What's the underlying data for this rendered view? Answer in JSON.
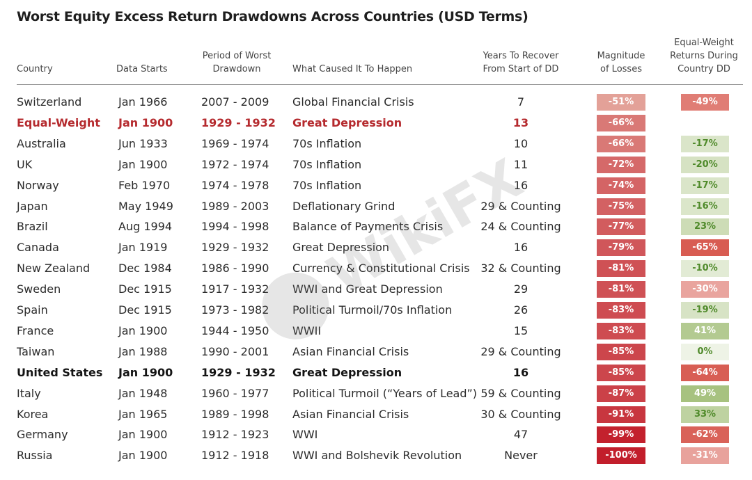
{
  "title": "Worst Equity Excess Return Drawdowns Across Countries (USD Terms)",
  "watermark": "WikiFX",
  "headers": {
    "country": "Country",
    "data_starts": "Data Starts",
    "period_line1": "Period of Worst",
    "period_line2": "Drawdown",
    "cause": "What Caused It To Happen",
    "recover_line1": "Years To Recover",
    "recover_line2": "From Start of DD",
    "magnitude_line1": "Magnitude",
    "magnitude_line2": "of Losses",
    "ew_line1": "Equal-Weight",
    "ew_line2": "Returns During",
    "ew_line3": "Country DD"
  },
  "colors": {
    "highlight_red": "#b52a2e",
    "magnitude_light": "#e4a49a",
    "magnitude_dark": "#c21e2b",
    "ew_negative_light": "#f7e2df",
    "ew_negative_dark": "#d85c52",
    "ew_positive_light": "#eef3e6",
    "ew_positive_dark": "#a6c17e"
  },
  "chart_data": {
    "type": "table",
    "title": "Worst Equity Excess Return Drawdowns Across Countries (USD Terms)",
    "columns": [
      "Country",
      "Data Starts",
      "Period of Worst Drawdown",
      "What Caused It To Happen",
      "Years To Recover From Start of DD",
      "Magnitude of Losses",
      "Equal-Weight Returns During Country DD"
    ],
    "rows": [
      {
        "country": "Switzerland",
        "data_starts": "Jan 1966",
        "period": "2007 - 2009",
        "cause": "Global Financial Crisis",
        "recover": "7",
        "magnitude": "-51%",
        "magnitude_value": -51,
        "ew": "-49%",
        "ew_value": -49,
        "style": "normal"
      },
      {
        "country": "Equal-Weight",
        "data_starts": "Jan 1900",
        "period": "1929 - 1932",
        "cause": "Great Depression",
        "recover": "13",
        "magnitude": "-66%",
        "magnitude_value": -66,
        "ew": "--",
        "ew_value": null,
        "style": "red"
      },
      {
        "country": "Australia",
        "data_starts": "Jun 1933",
        "period": "1969 - 1974",
        "cause": "70s Inflation",
        "recover": "10",
        "magnitude": "-66%",
        "magnitude_value": -66,
        "ew": "-17%",
        "ew_value": -17,
        "style": "normal"
      },
      {
        "country": "UK",
        "data_starts": "Jan 1900",
        "period": "1972 - 1974",
        "cause": "70s Inflation",
        "recover": "11",
        "magnitude": "-72%",
        "magnitude_value": -72,
        "ew": "-20%",
        "ew_value": -20,
        "style": "normal"
      },
      {
        "country": "Norway",
        "data_starts": "Feb 1970",
        "period": "1974 - 1978",
        "cause": "70s Inflation",
        "recover": "16",
        "magnitude": "-74%",
        "magnitude_value": -74,
        "ew": "-17%",
        "ew_value": -17,
        "style": "normal"
      },
      {
        "country": "Japan",
        "data_starts": "May 1949",
        "period": "1989 - 2003",
        "cause": "Deflationary Grind",
        "recover": "29 & Counting",
        "magnitude": "-75%",
        "magnitude_value": -75,
        "ew": "-16%",
        "ew_value": -16,
        "style": "normal"
      },
      {
        "country": "Brazil",
        "data_starts": "Aug 1994",
        "period": "1994 - 1998",
        "cause": "Balance of Payments Crisis",
        "recover": "24 & Counting",
        "magnitude": "-77%",
        "magnitude_value": -77,
        "ew": "23%",
        "ew_value": 23,
        "style": "normal"
      },
      {
        "country": "Canada",
        "data_starts": "Jan 1919",
        "period": "1929 - 1932",
        "cause": "Great Depression",
        "recover": "16",
        "magnitude": "-79%",
        "magnitude_value": -79,
        "ew": "-65%",
        "ew_value": -65,
        "style": "normal"
      },
      {
        "country": "New Zealand",
        "data_starts": "Dec 1984",
        "period": "1986 - 1990",
        "cause": "Currency & Constitutional Crisis",
        "recover": "32 & Counting",
        "magnitude": "-81%",
        "magnitude_value": -81,
        "ew": "-10%",
        "ew_value": -10,
        "style": "normal"
      },
      {
        "country": "Sweden",
        "data_starts": "Dec 1915",
        "period": "1917 - 1932",
        "cause": "WWI and Great Depression",
        "recover": "29",
        "magnitude": "-81%",
        "magnitude_value": -81,
        "ew": "-30%",
        "ew_value": -30,
        "style": "normal"
      },
      {
        "country": "Spain",
        "data_starts": "Dec 1915",
        "period": "1973 - 1982",
        "cause": "Political Turmoil/70s Inflation",
        "recover": "26",
        "magnitude": "-83%",
        "magnitude_value": -83,
        "ew": "-19%",
        "ew_value": -19,
        "style": "normal"
      },
      {
        "country": "France",
        "data_starts": "Jan 1900",
        "period": "1944 - 1950",
        "cause": "WWII",
        "recover": "15",
        "magnitude": "-83%",
        "magnitude_value": -83,
        "ew": "41%",
        "ew_value": 41,
        "style": "normal"
      },
      {
        "country": "Taiwan",
        "data_starts": "Jan 1988",
        "period": "1990 - 2001",
        "cause": "Asian Financial Crisis",
        "recover": "29 & Counting",
        "magnitude": "-85%",
        "magnitude_value": -85,
        "ew": "0%",
        "ew_value": 0,
        "style": "normal"
      },
      {
        "country": "United States",
        "data_starts": "Jan 1900",
        "period": "1929 - 1932",
        "cause": "Great Depression",
        "recover": "16",
        "magnitude": "-85%",
        "magnitude_value": -85,
        "ew": "-64%",
        "ew_value": -64,
        "style": "bold"
      },
      {
        "country": "Italy",
        "data_starts": "Jan 1948",
        "period": "1960 - 1977",
        "cause": "Political Turmoil (“Years of Lead”)",
        "recover": "59 & Counting",
        "magnitude": "-87%",
        "magnitude_value": -87,
        "ew": "49%",
        "ew_value": 49,
        "style": "normal"
      },
      {
        "country": "Korea",
        "data_starts": "Jan 1965",
        "period": "1989 - 1998",
        "cause": "Asian Financial Crisis",
        "recover": "30 & Counting",
        "magnitude": "-91%",
        "magnitude_value": -91,
        "ew": "33%",
        "ew_value": 33,
        "style": "normal"
      },
      {
        "country": "Germany",
        "data_starts": "Jan 1900",
        "period": "1912 - 1923",
        "cause": "WWI",
        "recover": "47",
        "magnitude": "-99%",
        "magnitude_value": -99,
        "ew": "-62%",
        "ew_value": -62,
        "style": "normal"
      },
      {
        "country": "Russia",
        "data_starts": "Jan 1900",
        "period": "1912 - 1918",
        "cause": "WWI and Bolshevik Revolution",
        "recover": "Never",
        "magnitude": "-100%",
        "magnitude_value": -100,
        "ew": "-31%",
        "ew_value": -31,
        "style": "normal"
      }
    ]
  }
}
